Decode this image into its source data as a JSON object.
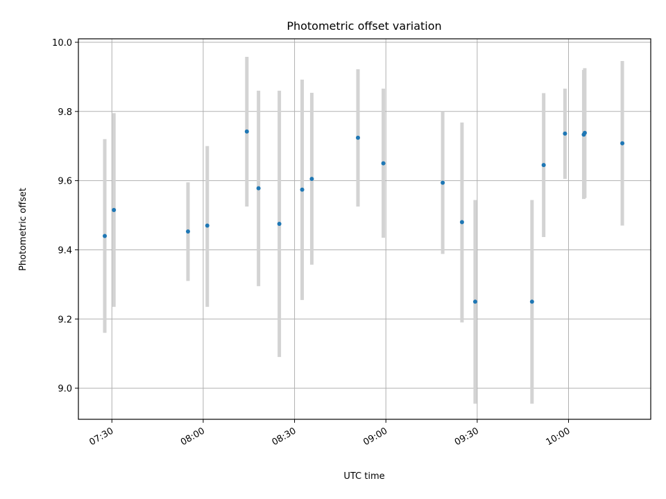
{
  "chart_data": {
    "type": "scatter",
    "title": "Photometric offset variation",
    "xlabel": "UTC time",
    "ylabel": "Photometric offset",
    "x_ticks": [
      "07:30",
      "08:00",
      "08:30",
      "09:00",
      "09:30",
      "10:00"
    ],
    "y_ticks": [
      "9.0",
      "9.2",
      "9.4",
      "9.6",
      "9.8",
      "10.0"
    ],
    "xlim": [
      "07:19",
      "10:27"
    ],
    "ylim": [
      8.91,
      10.01
    ],
    "grid": true,
    "colors": {
      "points": "#1f77b4",
      "error_bars": "#d3d3d3",
      "grid": "#b0b0b0"
    },
    "points": [
      {
        "x": "07:27:40",
        "y": 9.44,
        "err_low": 9.16,
        "err_high": 9.72
      },
      {
        "x": "07:30:40",
        "y": 9.515,
        "err_low": 9.235,
        "err_high": 9.795
      },
      {
        "x": "07:55:00",
        "y": 9.453,
        "err_low": 9.31,
        "err_high": 9.595
      },
      {
        "x": "08:01:20",
        "y": 9.47,
        "err_low": 9.235,
        "err_high": 9.7
      },
      {
        "x": "08:14:20",
        "y": 9.742,
        "err_low": 9.525,
        "err_high": 9.958
      },
      {
        "x": "08:18:10",
        "y": 9.578,
        "err_low": 9.295,
        "err_high": 9.86
      },
      {
        "x": "08:25:00",
        "y": 9.475,
        "err_low": 9.09,
        "err_high": 9.86
      },
      {
        "x": "08:32:30",
        "y": 9.574,
        "err_low": 9.255,
        "err_high": 9.892
      },
      {
        "x": "08:35:40",
        "y": 9.605,
        "err_low": 9.357,
        "err_high": 9.854
      },
      {
        "x": "08:50:50",
        "y": 9.724,
        "err_low": 9.525,
        "err_high": 9.922
      },
      {
        "x": "08:59:10",
        "y": 9.65,
        "err_low": 9.435,
        "err_high": 9.866
      },
      {
        "x": "09:18:40",
        "y": 9.594,
        "err_low": 9.388,
        "err_high": 9.8
      },
      {
        "x": "09:25:00",
        "y": 9.48,
        "err_low": 9.19,
        "err_high": 9.768
      },
      {
        "x": "09:29:20",
        "y": 9.25,
        "err_low": 8.955,
        "err_high": 9.544
      },
      {
        "x": "09:48:00",
        "y": 9.25,
        "err_low": 8.955,
        "err_high": 9.544
      },
      {
        "x": "09:51:50",
        "y": 9.645,
        "err_low": 9.437,
        "err_high": 9.853
      },
      {
        "x": "09:58:50",
        "y": 9.736,
        "err_low": 9.605,
        "err_high": 9.866
      },
      {
        "x": "10:05:00",
        "y": 9.733,
        "err_low": 9.547,
        "err_high": 9.92
      },
      {
        "x": "10:05:20",
        "y": 9.738,
        "err_low": 9.55,
        "err_high": 9.925
      },
      {
        "x": "10:17:40",
        "y": 9.708,
        "err_low": 9.47,
        "err_high": 9.946
      }
    ]
  }
}
